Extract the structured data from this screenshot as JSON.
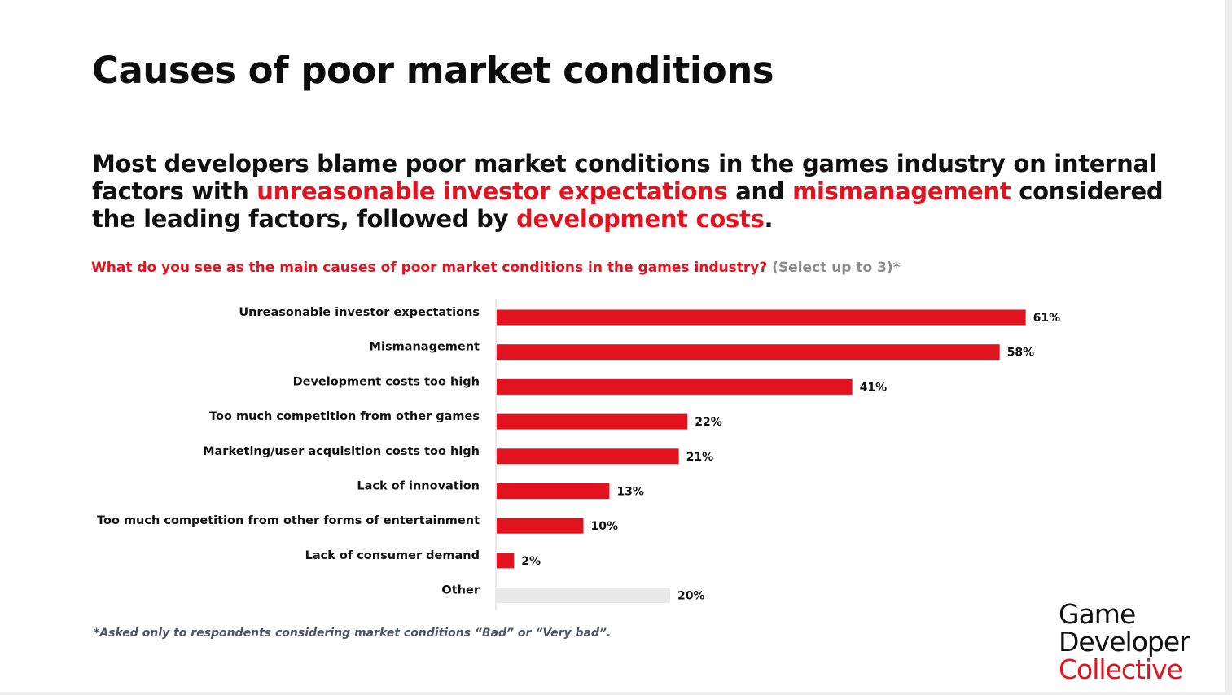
{
  "title": "Causes of poor market conditions",
  "headline": {
    "part1": "Most developers blame poor market conditions in the games industry on internal factors with ",
    "highlight1": "unreasonable investor expectations",
    "part2": " and ",
    "highlight2": "mismanagement",
    "part3": " considered the leading factors, followed by ",
    "highlight3": "development costs",
    "part4": "."
  },
  "question": {
    "text": "What do you see as the main causes of poor market conditions in the games industry?",
    "subtext": "(Select up to 3)*"
  },
  "footnote": "*Asked only to respondents considering market conditions “Bad” or “Very bad”.",
  "brand": {
    "line1": "Game",
    "line2": "Developer",
    "line3": "Collective"
  },
  "colors": {
    "accent": "#e2121f",
    "other_bar": "#e8e8e8",
    "axis": "#d0d0d0"
  },
  "chart_data": {
    "type": "bar",
    "orientation": "horizontal",
    "categories": [
      "Unreasonable investor expectations",
      "Mismanagement",
      "Development costs too high",
      "Too much competition from other games",
      "Marketing/user acquisition costs too high",
      "Lack of innovation",
      "Too much competition from other forms of entertainment",
      "Lack of consumer demand",
      "Other"
    ],
    "values": [
      61,
      58,
      41,
      22,
      21,
      13,
      10,
      2,
      20
    ],
    "value_labels": [
      "61%",
      "58%",
      "41%",
      "22%",
      "21%",
      "13%",
      "10%",
      "2%",
      "20%"
    ],
    "bar_colors": [
      "#e2121f",
      "#e2121f",
      "#e2121f",
      "#e2121f",
      "#e2121f",
      "#e2121f",
      "#e2121f",
      "#e2121f",
      "#e8e8e8"
    ],
    "unit": "%",
    "grid": false
  }
}
